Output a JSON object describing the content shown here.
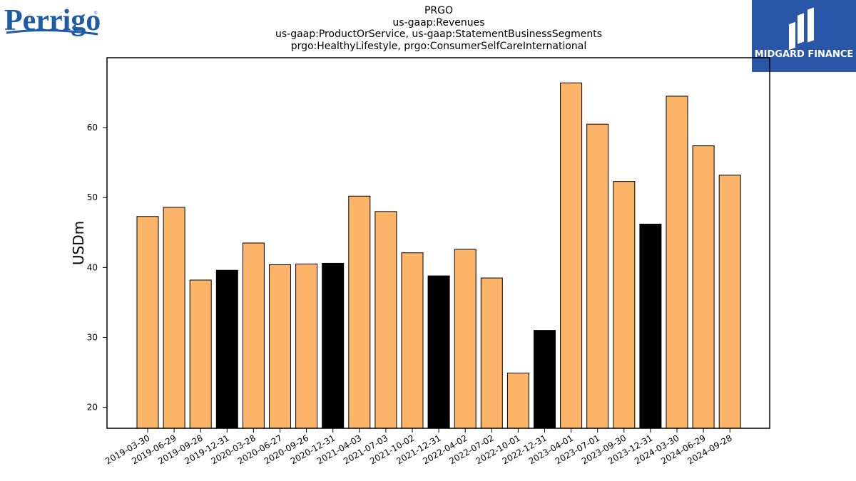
{
  "brand_left": {
    "name": "Perrigo",
    "color": "#1f5aa6"
  },
  "brand_right": {
    "name": "MIDGARD FINANCE",
    "bg": "#2a56a8"
  },
  "chart_data": {
    "type": "bar",
    "title_lines": [
      "PRGO",
      "us-gaap:Revenues",
      "us-gaap:ProductOrService, us-gaap:StatementBusinessSegments",
      "prgo:HealthyLifestyle, prgo:ConsumerSelfCareInternational"
    ],
    "ylabel": "USDm",
    "xlabel": "",
    "ylim": [
      17,
      70
    ],
    "yticks": [
      20,
      30,
      40,
      50,
      60
    ],
    "grid": false,
    "colors": {
      "quarter": "#fbb468",
      "year_end": "#000000",
      "edge": "#000000"
    },
    "categories": [
      "2019-03-30",
      "2019-06-29",
      "2019-09-28",
      "2019-12-31",
      "2020-03-28",
      "2020-06-27",
      "2020-09-26",
      "2020-12-31",
      "2021-04-03",
      "2021-07-03",
      "2021-10-02",
      "2021-12-31",
      "2022-04-02",
      "2022-07-02",
      "2022-10-01",
      "2022-12-31",
      "2023-04-01",
      "2023-07-01",
      "2023-09-30",
      "2023-12-31",
      "2024-03-30",
      "2024-06-29",
      "2024-09-28"
    ],
    "values": [
      47.3,
      48.6,
      38.2,
      39.6,
      43.5,
      40.4,
      40.5,
      40.6,
      50.2,
      48.0,
      42.1,
      38.8,
      42.6,
      38.5,
      24.9,
      31.0,
      66.4,
      60.5,
      52.3,
      46.2,
      64.5,
      57.4,
      53.2
    ],
    "is_year_end": [
      false,
      false,
      false,
      true,
      false,
      false,
      false,
      true,
      false,
      false,
      false,
      true,
      false,
      false,
      false,
      true,
      false,
      false,
      false,
      true,
      false,
      false,
      false
    ]
  }
}
